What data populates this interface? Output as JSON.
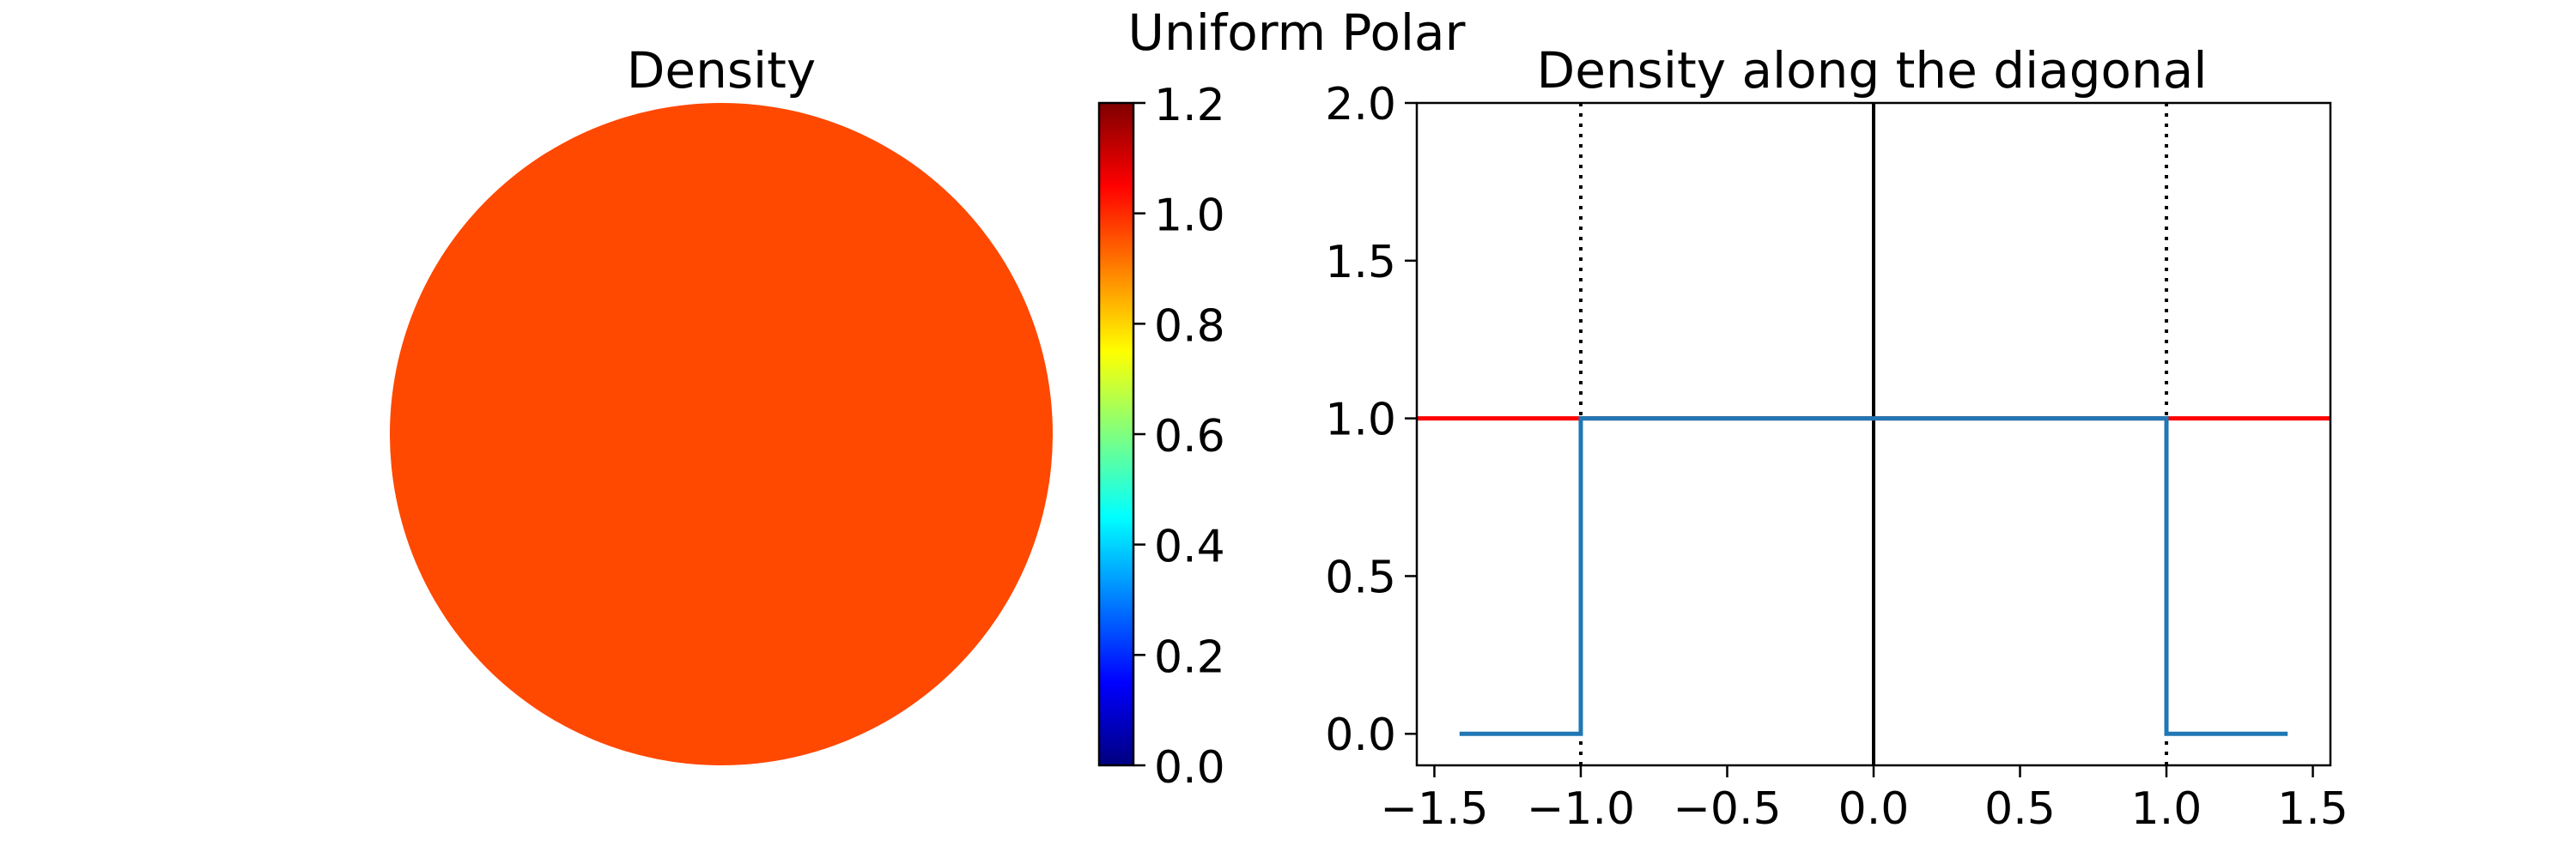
{
  "figure": {
    "suptitle": "Uniform Polar"
  },
  "chart_data": [
    {
      "type": "heatmap",
      "title": "Density",
      "shape": "disk",
      "domain_radius": 1.0,
      "value": 1.0,
      "fill_color": "#ff4800",
      "colormap": "jet",
      "colorbar": {
        "vmin": 0.0,
        "vmax": 1.2,
        "ticks": [
          0.0,
          0.2,
          0.4,
          0.6,
          0.8,
          1.0,
          1.2
        ],
        "tick_labels": [
          "0.0",
          "0.2",
          "0.4",
          "0.6",
          "0.8",
          "1.0",
          "1.2"
        ],
        "stops": [
          "#00007f",
          "#0000ff",
          "#007fff",
          "#00ffff",
          "#7fff7f",
          "#ffff00",
          "#ff7f00",
          "#ff0000",
          "#7f0000"
        ]
      }
    },
    {
      "type": "line",
      "title": "Density along the diagonal",
      "xlabel": "",
      "ylabel": "",
      "xlim": [
        -1.56,
        1.56
      ],
      "ylim": [
        -0.1,
        2.0
      ],
      "xticks": [
        -1.5,
        -1.0,
        -0.5,
        0.0,
        0.5,
        1.0,
        1.5
      ],
      "xtick_labels": [
        "−1.5",
        "−1.0",
        "−0.5",
        "0.0",
        "0.5",
        "1.0",
        "1.5"
      ],
      "yticks": [
        0.0,
        0.5,
        1.0,
        1.5,
        2.0
      ],
      "ytick_labels": [
        "0.0",
        "0.5",
        "1.0",
        "1.5",
        "2.0"
      ],
      "grid": false,
      "series": [
        {
          "color": "#ff0000",
          "style": "solid",
          "x": [
            -1.56,
            1.56
          ],
          "y": [
            1.0,
            1.0
          ]
        },
        {
          "color": "#1f77b4",
          "style": "solid",
          "x": [
            -1.414,
            -1.0,
            -1.0,
            1.0,
            1.0,
            1.414
          ],
          "y": [
            0.0,
            0.0,
            1.0,
            1.0,
            0.0,
            0.0
          ]
        }
      ],
      "vlines": [
        {
          "x": -1.0,
          "style": "dotted",
          "color": "#000000"
        },
        {
          "x": 0.0,
          "style": "solid",
          "color": "#000000"
        },
        {
          "x": 1.0,
          "style": "dotted",
          "color": "#000000"
        }
      ]
    }
  ]
}
